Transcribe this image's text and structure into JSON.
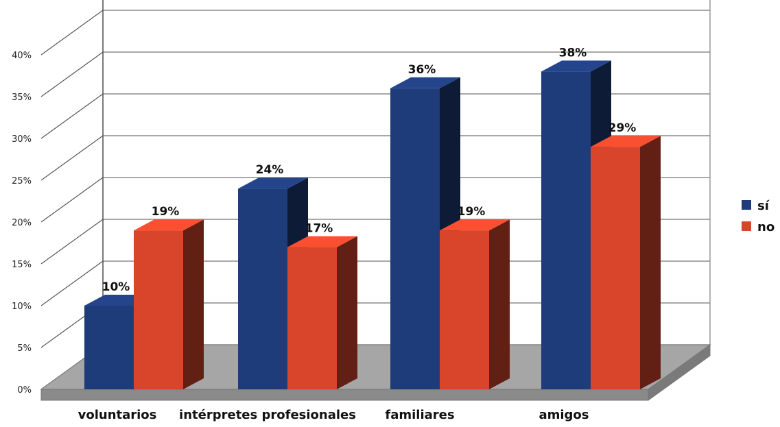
{
  "chart_data": {
    "type": "bar",
    "categories": [
      "voluntarios",
      "intérpretes profesionales",
      "familiares",
      "amigos"
    ],
    "series": [
      {
        "name": "sí",
        "values": [
          10,
          24,
          36,
          38
        ],
        "labels": [
          "10%",
          "24%",
          "36%",
          "38%"
        ],
        "color": "#1F3C7A"
      },
      {
        "name": "no",
        "values": [
          19,
          17,
          19,
          29
        ],
        "labels": [
          "19%",
          "17%",
          "19%",
          "29%"
        ],
        "color": "#D9452B"
      }
    ],
    "ylim": [
      0,
      40
    ],
    "yticks": [
      0,
      5,
      10,
      15,
      20,
      25,
      30,
      35,
      40
    ],
    "ytick_labels": [
      "0%",
      "5%",
      "10%",
      "15%",
      "20%",
      "25%",
      "30%",
      "35%",
      "40%"
    ],
    "grid": true,
    "legend": "right",
    "style": "3d-clustered-bar"
  }
}
